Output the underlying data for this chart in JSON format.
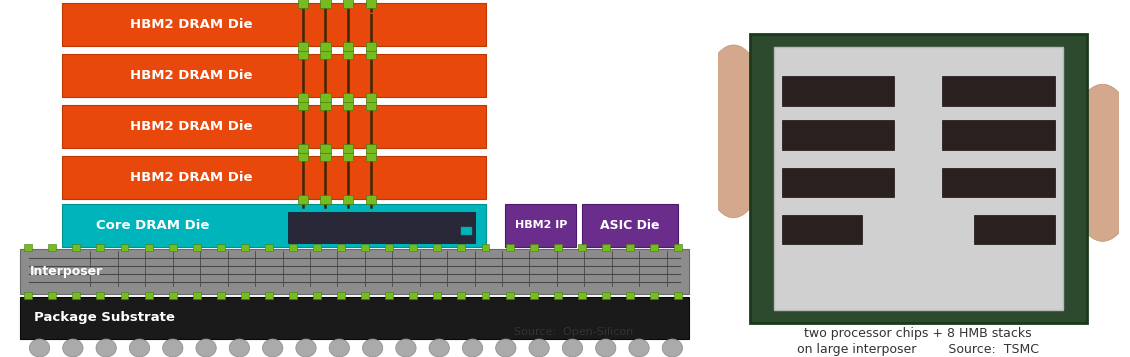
{
  "fig_width": 11.3,
  "fig_height": 3.57,
  "bg_color": "#ffffff",
  "colors": {
    "orange": "#E8480C",
    "teal": "#00B4BC",
    "purple": "#6B2D8B",
    "green": "#76BC21",
    "dark_green": "#4A7A10",
    "white": "#FFFFFF",
    "interposer_gray": "#8C8C8C",
    "substrate_black": "#1A1A1A",
    "dark_brown": "#3A2A10",
    "wire_gray": "#5A5A5A",
    "ball_gray": "#999999"
  },
  "source_left": "Source:  Open-Silicon",
  "caption_line1": "two processor chips + 8 HMB stacks",
  "caption_line2": "on large interposer        Source:  TSMC"
}
